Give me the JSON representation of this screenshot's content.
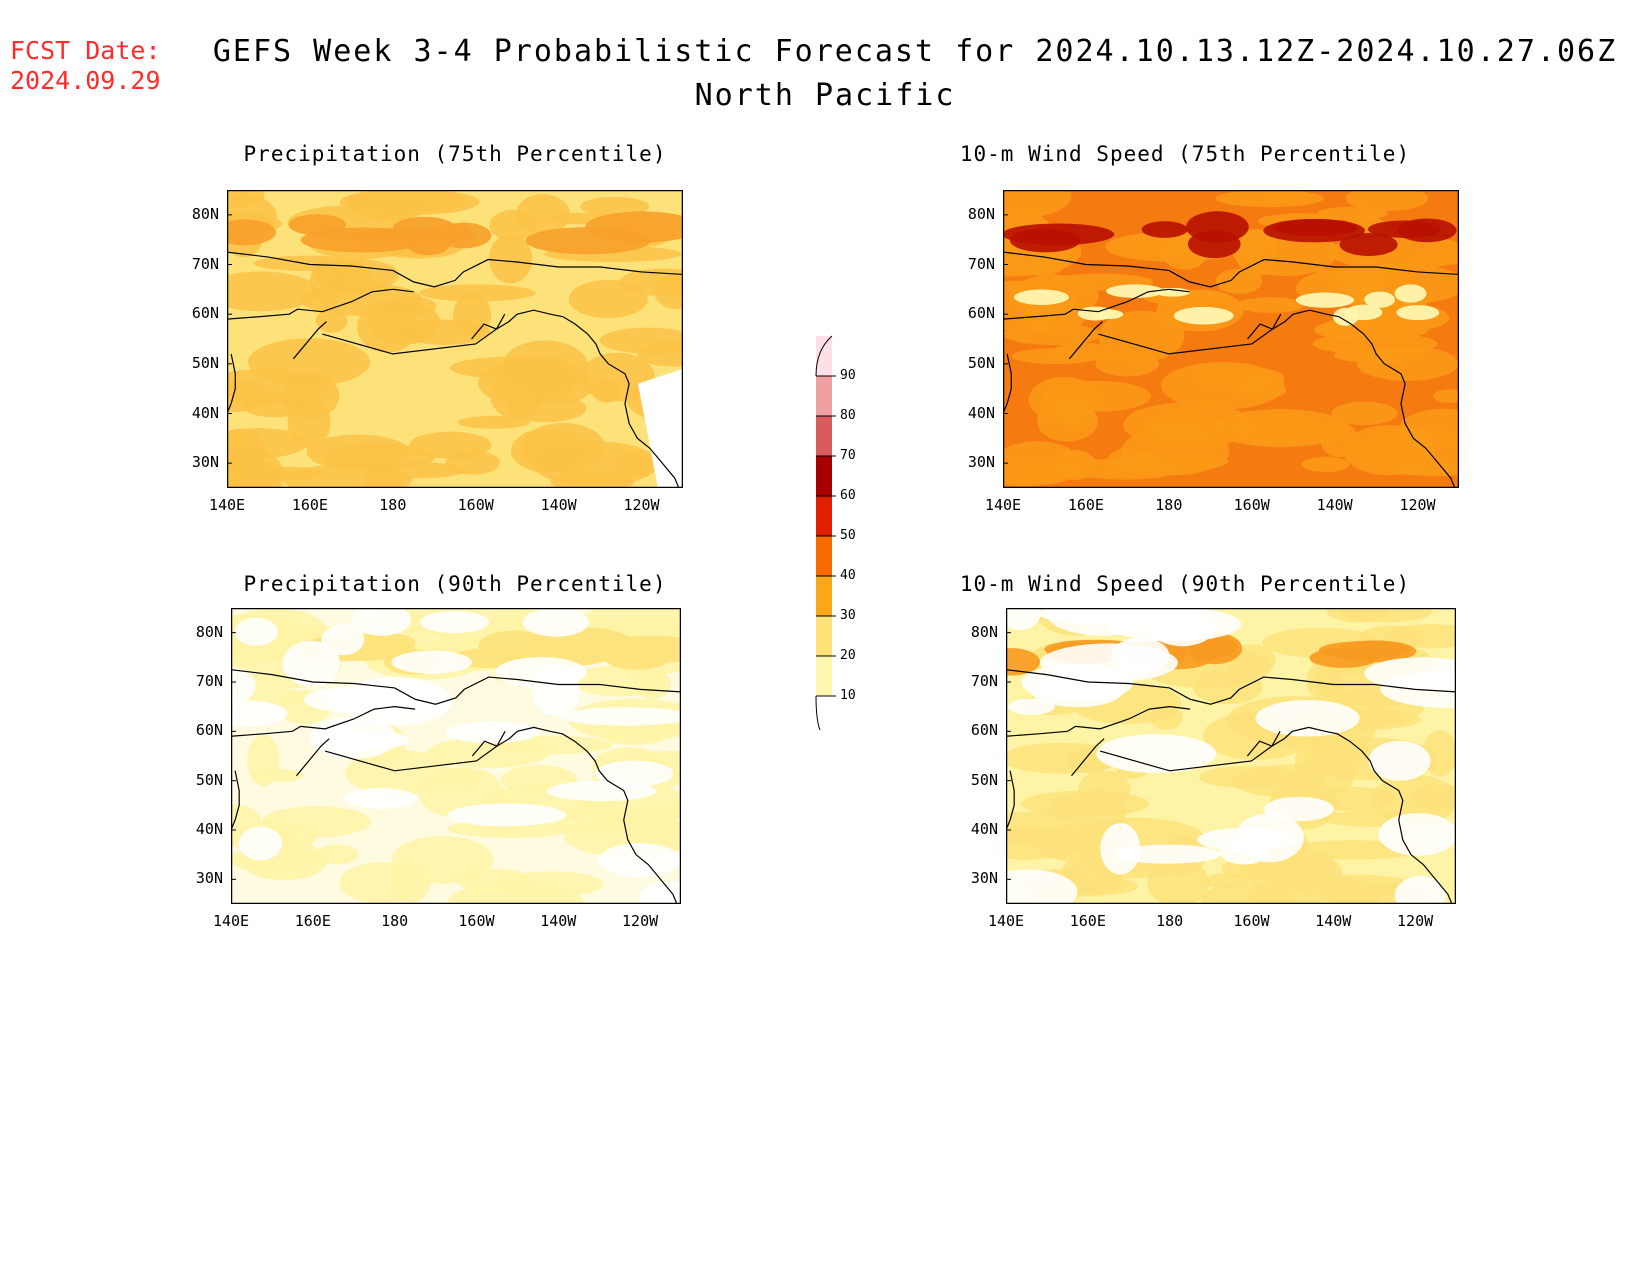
{
  "header": {
    "fcst_label": "FCST Date:",
    "fcst_date": "2024.09.29",
    "title": "GEFS Week 3-4 Probabilistic Forecast for 2024.10.13.12Z-2024.10.27.06Z",
    "region": "North Pacific"
  },
  "axes": {
    "lat_labels": [
      "80N",
      "70N",
      "60N",
      "50N",
      "40N",
      "30N"
    ],
    "lon_labels": [
      "140E",
      "160E",
      "180",
      "160W",
      "140W",
      "120W"
    ]
  },
  "panels": [
    {
      "title": "Precipitation (75th Percentile)",
      "base_color": "#fde27a",
      "patch_color": "#fbc246",
      "hot_color": "#f7a02a"
    },
    {
      "title": "10-m Wind Speed (75th Percentile)",
      "base_color": "#f57a10",
      "patch_color": "#fa9a18",
      "hot_color": "#b80f00"
    },
    {
      "title": "Precipitation (90th Percentile)",
      "base_color": "#fffbe0",
      "patch_color": "#fff3a6",
      "hot_color": "#fde27a"
    },
    {
      "title": "10-m Wind Speed (90th Percentile)",
      "base_color": "#fff3a6",
      "patch_color": "#fde27a",
      "hot_color": "#f79a20"
    }
  ],
  "legend": {
    "levels": [
      "10",
      "20",
      "30",
      "40",
      "50",
      "60",
      "70",
      "80",
      "90"
    ],
    "colors": [
      "#fff7b0",
      "#fde27a",
      "#fba71a",
      "#f76b00",
      "#e01e00",
      "#a70000",
      "#d85c5c",
      "#f0a0a0",
      "#fde0e6"
    ]
  }
}
